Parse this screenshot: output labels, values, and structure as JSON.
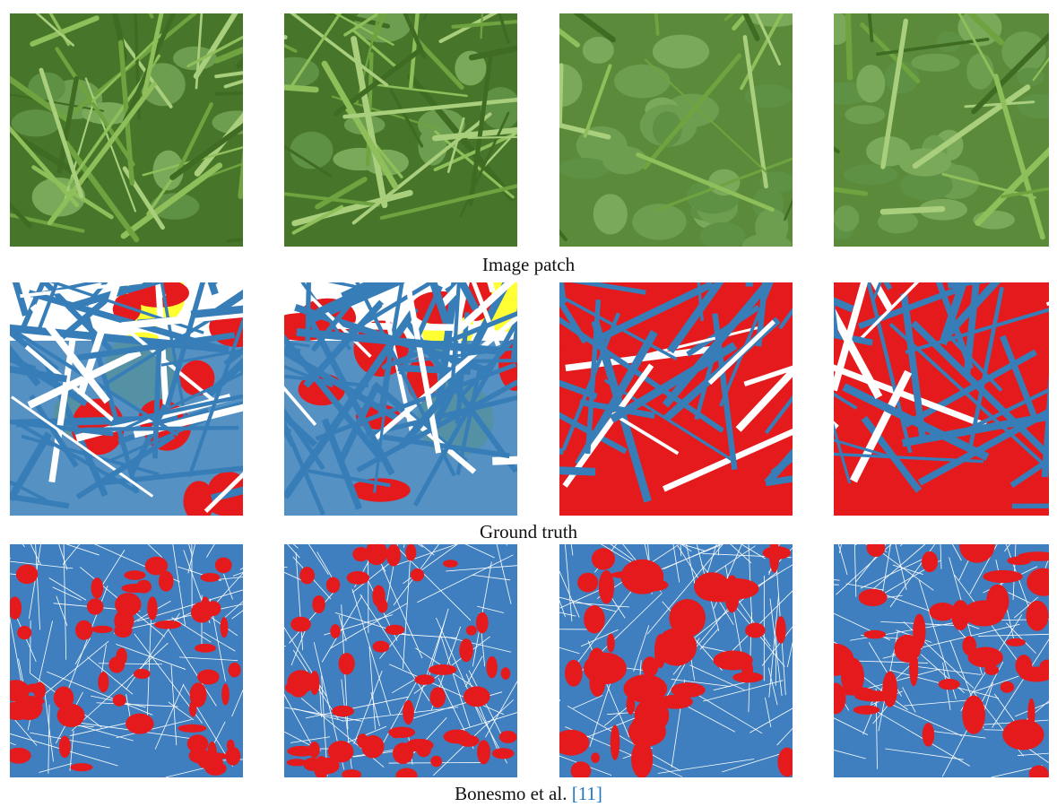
{
  "rows": [
    {
      "caption": "Image patch"
    },
    {
      "caption": "Ground truth"
    },
    {
      "caption": "Bonesmo et al.",
      "citation": "[11]"
    }
  ]
}
